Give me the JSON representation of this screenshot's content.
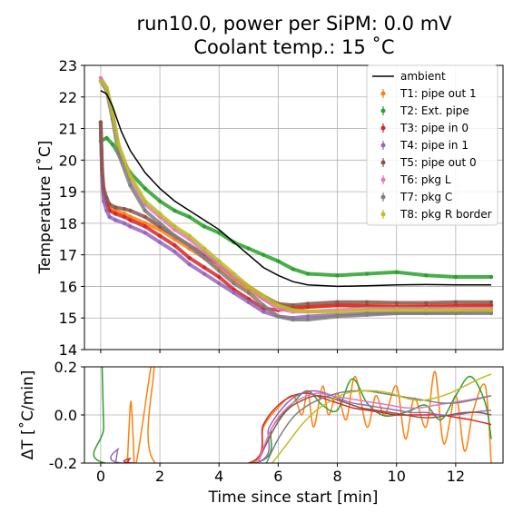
{
  "chart_data": [
    {
      "type": "scatter",
      "title": "run10.0, power per SiPM: 0.0 mV",
      "subtitle": "Coolant temp.: 15 ˚C",
      "xlabel": "",
      "ylabel": "Temperature [˚C]",
      "xlim": [
        -0.55,
        13.6
      ],
      "ylim": [
        14,
        23
      ],
      "yticks": [
        14,
        15,
        16,
        17,
        18,
        19,
        20,
        21,
        22,
        23
      ],
      "xticks": [
        0,
        2,
        4,
        6,
        8,
        10,
        12
      ],
      "grid": true,
      "legend_position": "top-right",
      "series": [
        {
          "name": "ambient",
          "kind": "line",
          "color": "#000000",
          "x": [
            0,
            0.2,
            0.4,
            0.7,
            1,
            1.5,
            2,
            2.5,
            3,
            3.5,
            4,
            4.5,
            5,
            5.5,
            6,
            6.5,
            7,
            8,
            9,
            10,
            11,
            12,
            13.2
          ],
          "y": [
            22.2,
            22.1,
            21.7,
            20.9,
            20.3,
            19.6,
            19.1,
            18.7,
            18.4,
            18.1,
            17.8,
            17.4,
            17.0,
            16.6,
            16.35,
            16.15,
            16.05,
            16.0,
            16.02,
            16.05,
            16.06,
            16.05,
            16.05
          ]
        },
        {
          "name": "T1: pipe out 1",
          "kind": "points",
          "color": "#ff7f0e",
          "x": [
            0,
            0.05,
            0.1,
            0.2,
            0.3,
            0.5,
            0.8,
            1,
            1.5,
            2,
            2.5,
            3,
            3.5,
            4,
            4.5,
            5,
            5.5,
            6,
            6.5,
            7,
            8,
            9,
            10,
            11,
            12,
            13.2
          ],
          "y": [
            21.0,
            19.5,
            19.0,
            18.7,
            18.5,
            18.4,
            18.3,
            18.2,
            18.0,
            17.8,
            17.5,
            17.2,
            16.9,
            16.6,
            16.2,
            15.9,
            15.6,
            15.4,
            15.35,
            15.35,
            15.4,
            15.4,
            15.38,
            15.4,
            15.4,
            15.38
          ]
        },
        {
          "name": "T2: Ext. pipe",
          "kind": "points",
          "color": "#2ca02c",
          "x": [
            0,
            0.2,
            0.4,
            0.6,
            1,
            1.5,
            2,
            2.5,
            3,
            3.5,
            4,
            4.5,
            5,
            5.5,
            6,
            6.5,
            7,
            8,
            9,
            10,
            11,
            12,
            13.2
          ],
          "y": [
            20.6,
            20.7,
            20.5,
            20.2,
            19.6,
            19.1,
            18.7,
            18.4,
            18.2,
            17.9,
            17.7,
            17.4,
            17.2,
            17.0,
            16.8,
            16.55,
            16.4,
            16.35,
            16.4,
            16.45,
            16.35,
            16.3,
            16.3
          ]
        },
        {
          "name": "T3: pipe in 0",
          "kind": "points",
          "color": "#d62728",
          "x": [
            0,
            0.05,
            0.1,
            0.2,
            0.3,
            0.5,
            0.8,
            1,
            1.5,
            2,
            2.5,
            3,
            3.5,
            4,
            4.5,
            5,
            5.5,
            6,
            6.5,
            7,
            8,
            9,
            10,
            11,
            12,
            13.2
          ],
          "y": [
            21.2,
            19.5,
            18.9,
            18.6,
            18.4,
            18.3,
            18.2,
            18.1,
            17.9,
            17.6,
            17.3,
            16.9,
            16.6,
            16.3,
            15.9,
            15.6,
            15.3,
            15.25,
            15.3,
            15.35,
            15.4,
            15.38,
            15.35,
            15.36,
            15.38,
            15.4
          ]
        },
        {
          "name": "T4: pipe in 1",
          "kind": "points",
          "color": "#9467bd",
          "x": [
            0,
            0.05,
            0.1,
            0.2,
            0.3,
            0.5,
            0.8,
            1,
            1.5,
            2,
            2.5,
            3,
            3.5,
            4,
            4.5,
            5,
            5.5,
            6,
            6.5,
            7,
            8,
            9,
            10,
            11,
            12,
            13.2
          ],
          "y": [
            21.1,
            19.3,
            18.7,
            18.4,
            18.2,
            18.1,
            18.0,
            17.9,
            17.7,
            17.4,
            17.1,
            16.7,
            16.4,
            16.1,
            15.8,
            15.5,
            15.2,
            15.05,
            15.0,
            15.05,
            15.1,
            15.15,
            15.15,
            15.15,
            15.18,
            15.2
          ]
        },
        {
          "name": "T5: pipe out 0",
          "kind": "points",
          "color": "#8c564b",
          "x": [
            0,
            0.05,
            0.1,
            0.2,
            0.3,
            0.5,
            0.8,
            1,
            1.5,
            2,
            2.5,
            3,
            3.5,
            4,
            4.5,
            5,
            5.5,
            6,
            6.5,
            7,
            8,
            9,
            10,
            11,
            12,
            13.2
          ],
          "y": [
            21.2,
            19.7,
            19.1,
            18.8,
            18.6,
            18.5,
            18.45,
            18.4,
            18.2,
            17.9,
            17.6,
            17.3,
            17.0,
            16.7,
            16.3,
            16.0,
            15.7,
            15.45,
            15.4,
            15.45,
            15.5,
            15.5,
            15.48,
            15.48,
            15.5,
            15.5
          ]
        },
        {
          "name": "T6: pkg L",
          "kind": "points",
          "color": "#e377c2",
          "x": [
            0,
            0.2,
            0.4,
            0.6,
            1,
            1.5,
            2,
            2.5,
            3,
            3.5,
            4,
            4.5,
            5,
            5.5,
            6,
            6.5,
            7,
            8,
            9,
            10,
            11,
            12,
            13.2
          ],
          "y": [
            22.6,
            22.3,
            21.5,
            20.4,
            19.4,
            18.6,
            18.2,
            17.8,
            17.5,
            17.1,
            16.7,
            16.3,
            16.0,
            15.6,
            15.3,
            15.2,
            15.2,
            15.25,
            15.3,
            15.3,
            15.3,
            15.3,
            15.3
          ]
        },
        {
          "name": "T7: pkg C",
          "kind": "points",
          "color": "#7f7f7f",
          "x": [
            0,
            0.2,
            0.4,
            0.6,
            1,
            1.5,
            2,
            2.5,
            3,
            3.5,
            4,
            4.5,
            5,
            5.5,
            6,
            6.5,
            7,
            8,
            9,
            10,
            11,
            12,
            13.2
          ],
          "y": [
            22.5,
            22.2,
            21.3,
            20.2,
            19.2,
            18.4,
            18.0,
            17.6,
            17.3,
            16.9,
            16.5,
            16.1,
            15.8,
            15.4,
            15.05,
            14.95,
            14.95,
            15.05,
            15.1,
            15.15,
            15.15,
            15.15,
            15.15
          ]
        },
        {
          "name": "T8: pkg R border",
          "kind": "points",
          "color": "#bcbd22",
          "x": [
            0,
            0.2,
            0.4,
            0.6,
            1,
            1.5,
            2,
            2.5,
            3,
            3.5,
            4,
            4.5,
            5,
            5.5,
            6,
            6.5,
            7,
            8,
            9,
            10,
            11,
            12,
            13.2
          ],
          "y": [
            22.5,
            22.3,
            21.5,
            20.5,
            19.5,
            18.7,
            18.3,
            17.9,
            17.6,
            17.2,
            16.8,
            16.4,
            16.0,
            15.7,
            15.4,
            15.25,
            15.2,
            15.2,
            15.25,
            15.25,
            15.25,
            15.25,
            15.25
          ]
        }
      ]
    },
    {
      "type": "line",
      "xlabel": "Time since start [min]",
      "ylabel": "ΔT [˚C/min]",
      "xlim": [
        -0.55,
        13.6
      ],
      "ylim": [
        -0.2,
        0.2
      ],
      "yticks": [
        -0.2,
        0.0,
        0.2
      ],
      "xticks": [
        0,
        2,
        4,
        6,
        8,
        10,
        12
      ],
      "grid": true,
      "series": [
        {
          "name": "T1: pipe out 1",
          "color": "#ff7f0e",
          "x": [
            0.9,
            1.0,
            1.05,
            1.1,
            1.2,
            1.7,
            1.8,
            1.85,
            5.1,
            5.5,
            6.0,
            6.5,
            6.8,
            7.0,
            7.2,
            7.5,
            7.7,
            8.0,
            8.3,
            8.6,
            9.0,
            9.3,
            9.6,
            10.0,
            10.3,
            10.6,
            11.0,
            11.3,
            11.6,
            12.0,
            12.3,
            12.6,
            13.0,
            13.2
          ],
          "y": [
            -0.2,
            0.04,
            0.02,
            -0.1,
            -0.2,
            0.2,
            0.2,
            -0.2,
            -0.2,
            -0.05,
            0.03,
            0.08,
            0.0,
            0.1,
            -0.05,
            0.12,
            0.0,
            0.09,
            -0.02,
            0.16,
            -0.05,
            0.08,
            0.0,
            0.12,
            -0.1,
            0.07,
            -0.05,
            0.18,
            -0.12,
            0.08,
            -0.15,
            0.02,
            0.12,
            -0.2
          ]
        },
        {
          "name": "T2: Ext. pipe",
          "color": "#2ca02c",
          "x": [
            0.05,
            0.1,
            0.15,
            5.2,
            5.8,
            6.5,
            7.0,
            7.5,
            8.0,
            8.5,
            9.0,
            9.5,
            10.0,
            10.5,
            11.0,
            11.5,
            12.0,
            12.5,
            13.0,
            13.2
          ],
          "y": [
            0.2,
            -0.05,
            -0.2,
            -0.2,
            -0.05,
            0.05,
            0.1,
            0.04,
            0.02,
            0.15,
            0.05,
            0.0,
            0.0,
            0.02,
            0.04,
            -0.02,
            0.08,
            0.16,
            0.05,
            -0.1
          ]
        },
        {
          "name": "T3: pipe in 0",
          "color": "#d62728",
          "x": [
            0.9,
            1.0,
            1.1,
            5.0,
            5.5,
            6.0,
            6.5,
            7.0,
            7.5,
            8.0,
            8.5,
            9.0,
            9.5,
            10.0,
            10.5,
            11.0,
            11.5,
            12.0,
            12.5,
            13.2
          ],
          "y": [
            -0.2,
            -0.18,
            -0.2,
            -0.2,
            -0.04,
            0.04,
            0.08,
            0.09,
            0.07,
            0.05,
            0.03,
            0.02,
            0.01,
            0.0,
            0.0,
            0.0,
            0.0,
            -0.01,
            -0.02,
            -0.04
          ]
        },
        {
          "name": "T4: pipe in 1",
          "color": "#9467bd",
          "x": [
            0.5,
            0.6,
            0.7,
            5.2,
            5.7,
            6.3,
            6.8,
            7.2,
            7.6,
            8.0,
            8.5,
            9.0,
            9.5,
            10.0,
            10.5,
            11.0,
            11.5,
            12.0,
            12.5,
            13.2
          ],
          "y": [
            -0.2,
            -0.14,
            -0.2,
            -0.2,
            -0.05,
            0.05,
            0.09,
            0.1,
            0.09,
            0.07,
            0.05,
            0.04,
            0.03,
            0.02,
            0.01,
            0.01,
            0.0,
            0.0,
            0.01,
            0.02
          ]
        },
        {
          "name": "T5: pipe out 0",
          "color": "#8c564b",
          "x": [
            5.3,
            5.8,
            6.3,
            6.8,
            7.3,
            7.8,
            8.3,
            8.8,
            9.3,
            9.8,
            10.3,
            10.8,
            11.3,
            11.8,
            12.3,
            12.8,
            13.2
          ],
          "y": [
            -0.2,
            -0.07,
            0.02,
            0.06,
            0.08,
            0.07,
            0.05,
            0.03,
            0.02,
            0.01,
            0.0,
            -0.01,
            -0.01,
            0.0,
            0.01,
            0.01,
            0.0
          ]
        },
        {
          "name": "T6: pkg L",
          "color": "#e377c2",
          "x": [
            5.3,
            5.8,
            6.3,
            6.8,
            7.3,
            7.8,
            8.3,
            8.8,
            9.3,
            9.8,
            10.3,
            10.8,
            11.3,
            11.8,
            12.3,
            12.8,
            13.2
          ],
          "y": [
            -0.2,
            -0.05,
            0.03,
            0.07,
            0.09,
            0.08,
            0.07,
            0.06,
            0.05,
            0.04,
            0.03,
            0.03,
            0.04,
            0.05,
            0.06,
            0.07,
            0.08
          ]
        },
        {
          "name": "T7: pkg C",
          "color": "#7f7f7f",
          "x": [
            5.6,
            6.0,
            6.5,
            7.0,
            7.5,
            8.0,
            8.5,
            9.0,
            9.5,
            10.0,
            10.5,
            11.0,
            11.5,
            12.0,
            12.5,
            13.2
          ],
          "y": [
            -0.2,
            -0.1,
            -0.01,
            0.04,
            0.07,
            0.09,
            0.1,
            0.1,
            0.09,
            0.08,
            0.07,
            0.06,
            0.05,
            0.05,
            0.06,
            0.08
          ]
        },
        {
          "name": "T8: pkg R border",
          "color": "#bcbd22",
          "x": [
            5.8,
            6.3,
            6.8,
            7.3,
            7.8,
            8.3,
            8.8,
            9.3,
            9.8,
            10.3,
            10.8,
            11.3,
            11.8,
            12.3,
            12.8,
            13.2
          ],
          "y": [
            -0.2,
            -0.12,
            -0.04,
            0.02,
            0.06,
            0.09,
            0.1,
            0.1,
            0.09,
            0.07,
            0.06,
            0.07,
            0.09,
            0.12,
            0.15,
            0.17
          ]
        }
      ]
    }
  ]
}
